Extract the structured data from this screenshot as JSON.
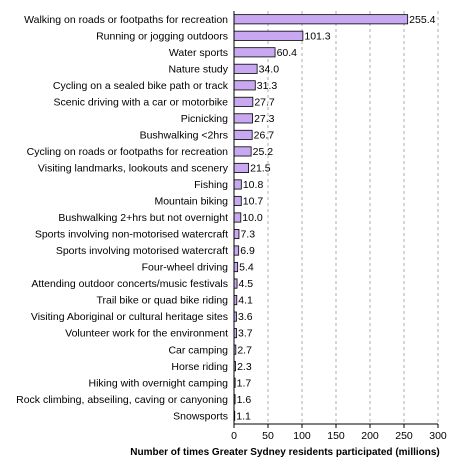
{
  "chart_data": {
    "type": "bar",
    "orientation": "horizontal",
    "categories": [
      "Walking on roads or footpaths for recreation",
      "Running or jogging outdoors",
      "Water sports",
      "Nature study",
      "Cycling on a sealed bike path or track",
      "Scenic driving with a car or motorbike",
      "Picnicking",
      "Bushwalking <2hrs",
      "Cycling on roads or footpaths for recreation",
      "Visiting landmarks, lookouts and scenery",
      "Fishing",
      "Mountain biking",
      "Bushwalking 2+hrs but not overnight",
      "Sports involving non-motorised watercraft",
      "Sports involving motorised watercraft",
      "Four-wheel driving",
      "Attending outdoor concerts/music festivals",
      "Trail bike or quad bike riding",
      "Visiting Aboriginal or cultural heritage sites",
      "Volunteer work for the environment",
      "Car camping",
      "Horse riding",
      "Hiking with overnight camping",
      "Rock climbing, abseiling, caving or canyoning",
      "Snowsports"
    ],
    "values": [
      255.4,
      101.3,
      60.4,
      34.0,
      31.3,
      27.7,
      27.3,
      26.7,
      25.2,
      21.5,
      10.8,
      10.7,
      10.0,
      7.3,
      6.9,
      5.4,
      4.5,
      4.1,
      3.6,
      3.7,
      2.7,
      2.3,
      1.7,
      1.6,
      1.1
    ],
    "value_labels": [
      "255.4",
      "101.3",
      "60.4",
      "34.0",
      "31.3",
      "27.7",
      "27.3",
      "26.7",
      "25.2",
      "21.5",
      "10.8",
      "10.7",
      "10.0",
      "7.3",
      "6.9",
      "5.4",
      "4.5",
      "4.1",
      "3.6",
      "3.7",
      "2.7",
      "2.3",
      "1.7",
      "1.6",
      "1.1"
    ],
    "xlabel": "Number of times Greater Sydney residents participated (millions)",
    "ylabel": "",
    "xlim": [
      0,
      300
    ],
    "xticks": [
      0,
      50,
      100,
      150,
      200,
      250,
      300
    ],
    "grid": "vertical dashed",
    "legend": "none",
    "colors": {
      "bar_fill": "#c8a8f0",
      "bar_stroke": "#000000",
      "grid": "#9a9a9a"
    }
  }
}
